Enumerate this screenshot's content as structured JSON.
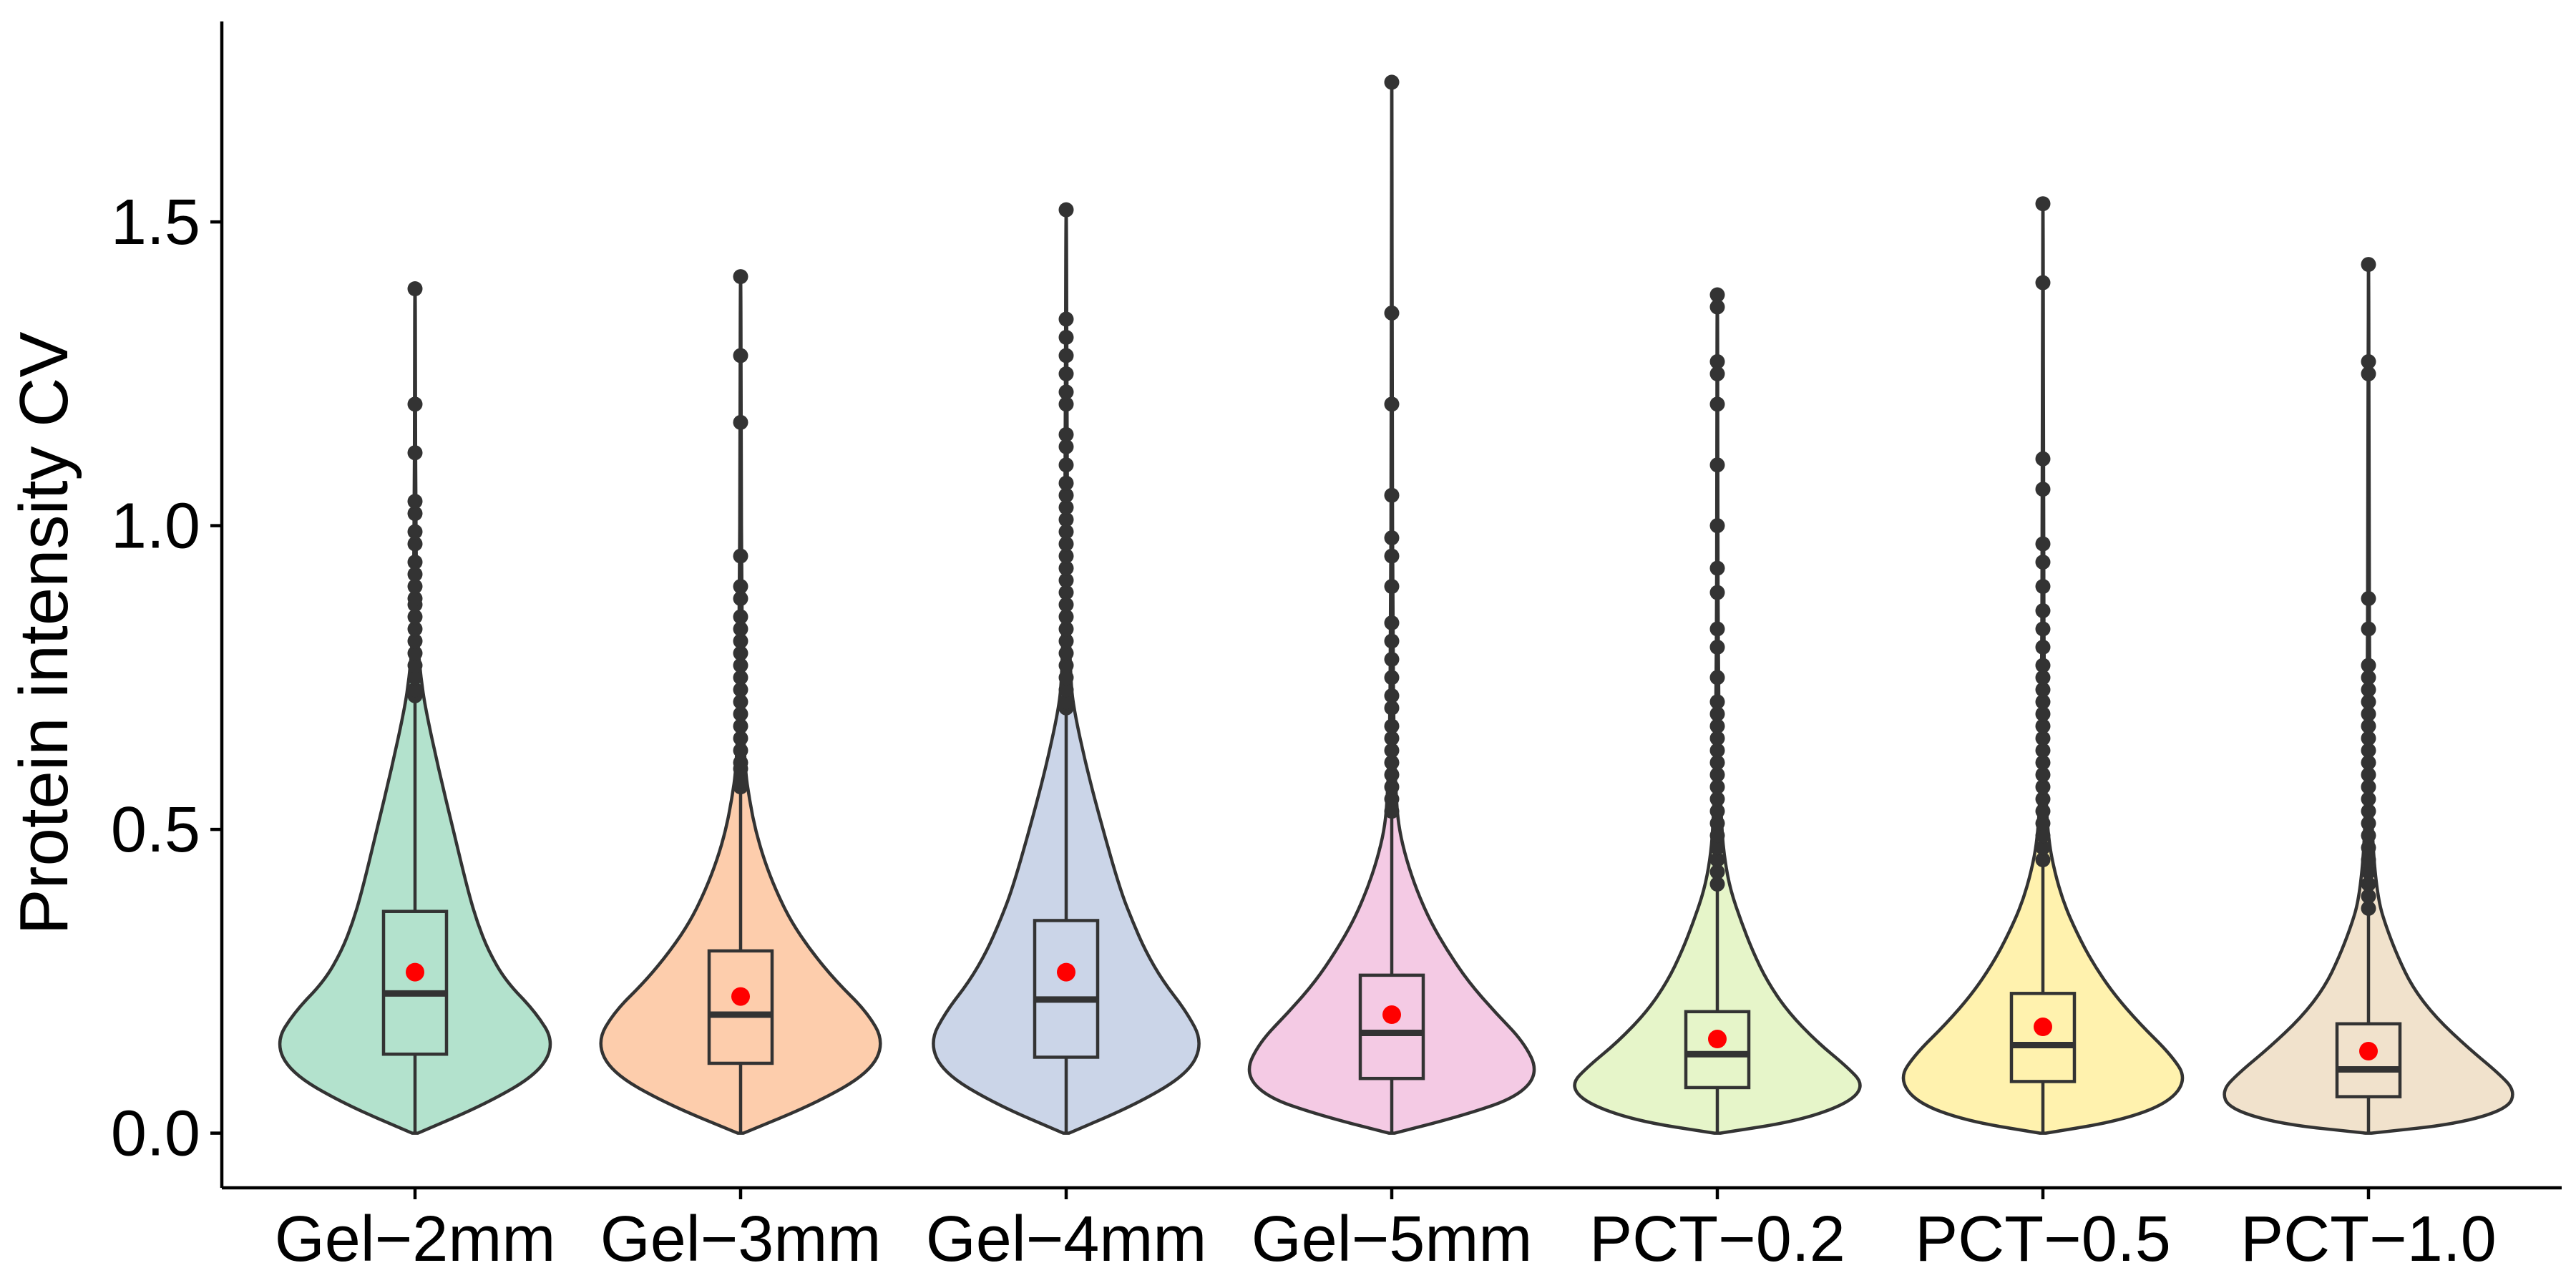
{
  "chart_data": {
    "type": "violin",
    "title": "",
    "xlabel": "",
    "ylabel": "Protein intensity CV",
    "ylim": [
      -0.09,
      1.83
    ],
    "yticks": [
      0.0,
      0.5,
      1.0,
      1.5
    ],
    "ytick_labels": [
      "0.0",
      "0.5",
      "1.0",
      "1.5"
    ],
    "grid": false,
    "legend": "none",
    "categories": [
      "Gel−2mm",
      "Gel−3mm",
      "Gel−4mm",
      "Gel−5mm",
      "PCT−0.2",
      "PCT−0.5",
      "PCT−1.0"
    ],
    "groups": [
      {
        "fill": "#b3e2cd",
        "min": 0.0,
        "q1": 0.13,
        "median": 0.23,
        "q3": 0.365,
        "whisker_high": 0.71,
        "max": 1.39,
        "mean": 0.265,
        "density": [
          [
            0.0,
            0.02
          ],
          [
            0.05,
            0.5
          ],
          [
            0.1,
            0.85
          ],
          [
            0.15,
            0.95
          ],
          [
            0.2,
            0.82
          ],
          [
            0.25,
            0.62
          ],
          [
            0.3,
            0.5
          ],
          [
            0.35,
            0.42
          ],
          [
            0.4,
            0.36
          ],
          [
            0.5,
            0.26
          ],
          [
            0.6,
            0.16
          ],
          [
            0.7,
            0.07
          ],
          [
            0.75,
            0.04
          ],
          [
            0.8,
            0.02
          ],
          [
            0.9,
            0.01
          ],
          [
            1.05,
            0.005
          ],
          [
            1.2,
            0.003
          ],
          [
            1.39,
            0.002
          ]
        ],
        "outliers": [
          0.72,
          0.73,
          0.75,
          0.77,
          0.79,
          0.81,
          0.83,
          0.85,
          0.87,
          0.88,
          0.9,
          0.92,
          0.94,
          0.97,
          0.99,
          1.02,
          1.04,
          1.12,
          1.2,
          1.39
        ]
      },
      {
        "fill": "#fdcdac",
        "min": 0.0,
        "q1": 0.115,
        "median": 0.195,
        "q3": 0.3,
        "whisker_high": 0.56,
        "max": 1.41,
        "mean": 0.225,
        "density": [
          [
            0.0,
            0.02
          ],
          [
            0.05,
            0.52
          ],
          [
            0.1,
            0.88
          ],
          [
            0.15,
            0.98
          ],
          [
            0.2,
            0.86
          ],
          [
            0.25,
            0.65
          ],
          [
            0.3,
            0.48
          ],
          [
            0.35,
            0.34
          ],
          [
            0.4,
            0.24
          ],
          [
            0.45,
            0.16
          ],
          [
            0.5,
            0.1
          ],
          [
            0.55,
            0.06
          ],
          [
            0.6,
            0.03
          ],
          [
            0.7,
            0.015
          ],
          [
            0.9,
            0.008
          ],
          [
            1.1,
            0.004
          ],
          [
            1.41,
            0.002
          ]
        ],
        "outliers": [
          0.57,
          0.58,
          0.6,
          0.61,
          0.63,
          0.65,
          0.67,
          0.69,
          0.71,
          0.73,
          0.75,
          0.77,
          0.79,
          0.81,
          0.83,
          0.85,
          0.88,
          0.9,
          0.95,
          1.17,
          1.28,
          1.41
        ]
      },
      {
        "fill": "#cbd5e8",
        "min": 0.0,
        "q1": 0.125,
        "median": 0.22,
        "q3": 0.35,
        "whisker_high": 0.69,
        "max": 1.52,
        "mean": 0.265,
        "density": [
          [
            0.0,
            0.02
          ],
          [
            0.05,
            0.5
          ],
          [
            0.1,
            0.84
          ],
          [
            0.15,
            0.93
          ],
          [
            0.2,
            0.82
          ],
          [
            0.25,
            0.66
          ],
          [
            0.3,
            0.54
          ],
          [
            0.35,
            0.45
          ],
          [
            0.4,
            0.37
          ],
          [
            0.5,
            0.25
          ],
          [
            0.6,
            0.14
          ],
          [
            0.7,
            0.05
          ],
          [
            0.75,
            0.03
          ],
          [
            0.85,
            0.02
          ],
          [
            1.0,
            0.01
          ],
          [
            1.2,
            0.005
          ],
          [
            1.52,
            0.002
          ]
        ],
        "outliers": [
          0.7,
          0.71,
          0.73,
          0.75,
          0.77,
          0.79,
          0.81,
          0.83,
          0.85,
          0.87,
          0.89,
          0.91,
          0.93,
          0.95,
          0.97,
          0.99,
          1.01,
          1.03,
          1.05,
          1.07,
          1.1,
          1.13,
          1.15,
          1.2,
          1.22,
          1.25,
          1.28,
          1.31,
          1.34,
          1.52
        ]
      },
      {
        "fill": "#f4cae4",
        "min": 0.0,
        "q1": 0.09,
        "median": 0.165,
        "q3": 0.26,
        "whisker_high": 0.52,
        "max": 1.73,
        "mean": 0.195,
        "density": [
          [
            0.0,
            0.02
          ],
          [
            0.03,
            0.5
          ],
          [
            0.06,
            0.86
          ],
          [
            0.1,
            1.0
          ],
          [
            0.15,
            0.9
          ],
          [
            0.2,
            0.7
          ],
          [
            0.25,
            0.52
          ],
          [
            0.3,
            0.38
          ],
          [
            0.35,
            0.26
          ],
          [
            0.4,
            0.17
          ],
          [
            0.45,
            0.1
          ],
          [
            0.5,
            0.05
          ],
          [
            0.55,
            0.03
          ],
          [
            0.65,
            0.015
          ],
          [
            0.8,
            0.008
          ],
          [
            1.2,
            0.003
          ],
          [
            1.73,
            0.001
          ]
        ],
        "outliers": [
          0.53,
          0.55,
          0.57,
          0.59,
          0.61,
          0.63,
          0.65,
          0.67,
          0.7,
          0.72,
          0.75,
          0.78,
          0.81,
          0.84,
          0.9,
          0.95,
          0.98,
          1.05,
          1.2,
          1.35,
          1.73
        ]
      },
      {
        "fill": "#e6f5c9",
        "min": 0.0,
        "q1": 0.075,
        "median": 0.13,
        "q3": 0.2,
        "whisker_high": 0.4,
        "max": 1.38,
        "mean": 0.155,
        "density": [
          [
            0.0,
            0.02
          ],
          [
            0.02,
            0.55
          ],
          [
            0.05,
            0.9
          ],
          [
            0.08,
            1.0
          ],
          [
            0.11,
            0.88
          ],
          [
            0.15,
            0.68
          ],
          [
            0.2,
            0.48
          ],
          [
            0.25,
            0.34
          ],
          [
            0.3,
            0.24
          ],
          [
            0.35,
            0.16
          ],
          [
            0.4,
            0.09
          ],
          [
            0.45,
            0.05
          ],
          [
            0.5,
            0.03
          ],
          [
            0.6,
            0.015
          ],
          [
            0.8,
            0.006
          ],
          [
            1.1,
            0.003
          ],
          [
            1.38,
            0.002
          ]
        ],
        "outliers": [
          0.41,
          0.43,
          0.45,
          0.47,
          0.49,
          0.51,
          0.53,
          0.55,
          0.57,
          0.59,
          0.61,
          0.63,
          0.65,
          0.67,
          0.69,
          0.71,
          0.75,
          0.8,
          0.83,
          0.89,
          0.93,
          1.0,
          1.1,
          1.2,
          1.25,
          1.27,
          1.36,
          1.38
        ]
      },
      {
        "fill": "#fff2ae",
        "min": 0.0,
        "q1": 0.085,
        "median": 0.145,
        "q3": 0.23,
        "whisker_high": 0.44,
        "max": 1.53,
        "mean": 0.175,
        "density": [
          [
            0.0,
            0.02
          ],
          [
            0.02,
            0.52
          ],
          [
            0.05,
            0.86
          ],
          [
            0.09,
            0.98
          ],
          [
            0.13,
            0.87
          ],
          [
            0.18,
            0.66
          ],
          [
            0.23,
            0.48
          ],
          [
            0.28,
            0.34
          ],
          [
            0.33,
            0.23
          ],
          [
            0.38,
            0.14
          ],
          [
            0.43,
            0.08
          ],
          [
            0.48,
            0.04
          ],
          [
            0.55,
            0.02
          ],
          [
            0.7,
            0.01
          ],
          [
            1.0,
            0.004
          ],
          [
            1.53,
            0.002
          ]
        ],
        "outliers": [
          0.45,
          0.47,
          0.49,
          0.51,
          0.53,
          0.55,
          0.57,
          0.59,
          0.61,
          0.63,
          0.65,
          0.67,
          0.69,
          0.71,
          0.73,
          0.75,
          0.77,
          0.8,
          0.83,
          0.86,
          0.9,
          0.94,
          0.97,
          1.06,
          1.11,
          1.4,
          1.53
        ]
      },
      {
        "fill": "#f1e2cc",
        "min": 0.0,
        "q1": 0.06,
        "median": 0.105,
        "q3": 0.18,
        "whisker_high": 0.36,
        "max": 1.43,
        "mean": 0.135,
        "density": [
          [
            0.0,
            0.02
          ],
          [
            0.015,
            0.6
          ],
          [
            0.04,
            0.95
          ],
          [
            0.07,
            1.0
          ],
          [
            0.1,
            0.88
          ],
          [
            0.14,
            0.68
          ],
          [
            0.19,
            0.46
          ],
          [
            0.24,
            0.3
          ],
          [
            0.29,
            0.2
          ],
          [
            0.34,
            0.12
          ],
          [
            0.38,
            0.07
          ],
          [
            0.45,
            0.035
          ],
          [
            0.55,
            0.018
          ],
          [
            0.7,
            0.009
          ],
          [
            1.0,
            0.004
          ],
          [
            1.43,
            0.002
          ]
        ],
        "outliers": [
          0.37,
          0.39,
          0.41,
          0.43,
          0.45,
          0.47,
          0.49,
          0.51,
          0.53,
          0.55,
          0.57,
          0.59,
          0.61,
          0.63,
          0.65,
          0.67,
          0.69,
          0.71,
          0.73,
          0.75,
          0.77,
          0.83,
          0.88,
          1.25,
          1.27,
          1.43
        ]
      }
    ],
    "colors": {
      "outline": "#333333",
      "mean_point": "#ff0000",
      "axis": "#000000"
    }
  }
}
